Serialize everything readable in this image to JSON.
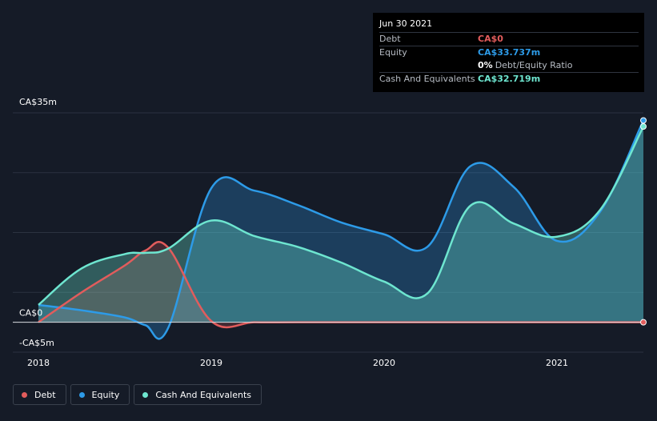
{
  "tooltip": {
    "date": "Jun 30 2021",
    "rows": {
      "debt": {
        "label": "Debt",
        "value": "CA$0"
      },
      "equity": {
        "label": "Equity",
        "value": "CA$33.737m"
      },
      "ratio": {
        "value": "0%",
        "label": "Debt/Equity Ratio"
      },
      "cash": {
        "label": "Cash And Equivalents",
        "value": "CA$32.719m"
      }
    }
  },
  "legend": [
    {
      "key": "debt",
      "label": "Debt"
    },
    {
      "key": "equity",
      "label": "Equity"
    },
    {
      "key": "cash",
      "label": "Cash And Equivalents"
    }
  ],
  "colors": {
    "background": "#151b27",
    "debt": "#e25c5c",
    "equity": "#2d9be8",
    "cash": "#6ee6d0",
    "grid": "#2b3240"
  },
  "chart_data": {
    "type": "area",
    "y_axis_labels": [
      "CA$35m",
      "CA$0",
      "-CA$5m"
    ],
    "x_tick_labels": [
      "2018",
      "2019",
      "2020",
      "2021"
    ],
    "x_ticks": [
      2018.0,
      2019.0,
      2020.0,
      2021.0
    ],
    "ylim": [
      -5,
      35
    ],
    "xlim": [
      2018.0,
      2021.5
    ],
    "grid": true,
    "legend_position": "bottom-left",
    "series": [
      {
        "key": "debt",
        "name": "Debt",
        "x": [
          2018.0,
          2018.25,
          2018.5,
          2018.62,
          2018.75,
          2019.0,
          2019.25,
          2019.5,
          2020.0,
          2020.5,
          2021.0,
          2021.5
        ],
        "y": [
          0.0,
          5.0,
          9.5,
          12.0,
          12.5,
          0.2,
          0.0,
          0.0,
          0.0,
          0.0,
          0.0,
          0.0
        ]
      },
      {
        "key": "equity",
        "name": "Equity",
        "x": [
          2018.0,
          2018.25,
          2018.5,
          2018.62,
          2018.75,
          2019.0,
          2019.25,
          2019.5,
          2019.75,
          2020.0,
          2020.25,
          2020.5,
          2020.75,
          2021.0,
          2021.25,
          2021.5
        ],
        "y": [
          2.9,
          2.0,
          0.8,
          -0.5,
          -1.0,
          22.4,
          22.0,
          19.6,
          16.7,
          14.7,
          12.6,
          26.1,
          22.6,
          13.6,
          18.5,
          33.737
        ]
      },
      {
        "key": "cash",
        "name": "Cash And Equivalents",
        "x": [
          2018.0,
          2018.25,
          2018.5,
          2018.62,
          2018.75,
          2019.0,
          2019.25,
          2019.5,
          2019.75,
          2020.0,
          2020.25,
          2020.5,
          2020.75,
          2021.0,
          2021.25,
          2021.5
        ],
        "y": [
          2.9,
          9.0,
          11.4,
          11.6,
          12.3,
          17.0,
          14.4,
          12.6,
          10.0,
          6.8,
          4.8,
          19.5,
          16.5,
          14.3,
          18.8,
          32.719
        ]
      }
    ]
  }
}
